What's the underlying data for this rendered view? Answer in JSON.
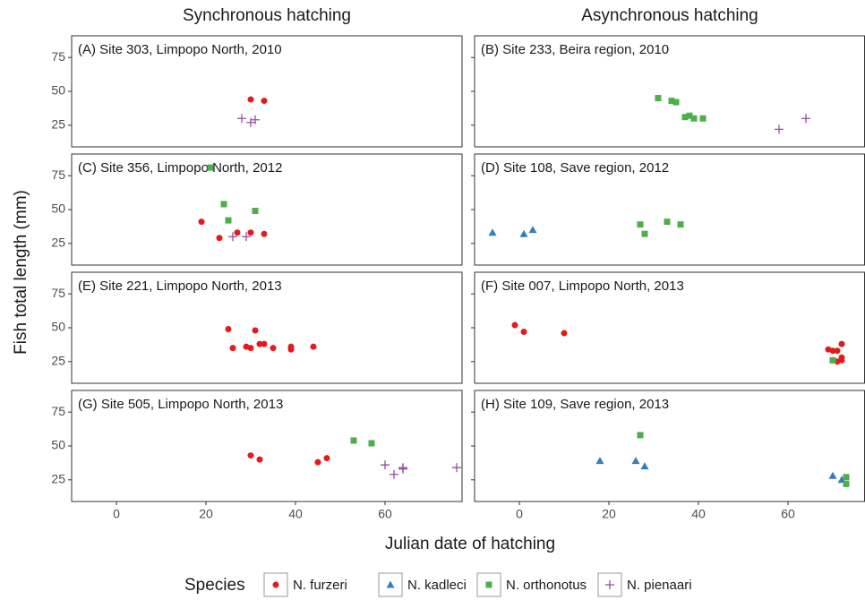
{
  "chart_data": {
    "type": "scatter",
    "column_titles": [
      "Synchronous hatching",
      "Asynchronous hatching"
    ],
    "x_label": "Julian date of hatching",
    "y_label": "Fish total length (mm)",
    "legend_title": "Species",
    "species": [
      {
        "name": "N. furzeri",
        "color": "#e41a1c",
        "marker": "circle"
      },
      {
        "name": "N. kadleci",
        "color": "#377eb8",
        "marker": "triangle"
      },
      {
        "name": "N. orthonotus",
        "color": "#4daf4a",
        "marker": "square"
      },
      {
        "name": "N. pienaari",
        "color": "#984ea3",
        "marker": "plus"
      }
    ],
    "xlim": [
      -10,
      77.2
    ],
    "xticks": [
      0,
      20,
      40,
      60
    ],
    "ylim": [
      9,
      91
    ],
    "yticks": [
      25,
      50,
      75
    ],
    "panels": [
      {
        "label": "(A) Site 303, Limpopo North, 2010",
        "series": [
          {
            "x": [
              30,
              33
            ],
            "values": [
              44,
              43
            ]
          },
          {
            "x": [],
            "values": []
          },
          {
            "x": [],
            "values": []
          },
          {
            "x": [
              28,
              30,
              31
            ],
            "values": [
              30,
              27,
              29
            ]
          }
        ]
      },
      {
        "label": "(B) Site 233, Beira region, 2010",
        "series": [
          {
            "x": [],
            "values": []
          },
          {
            "x": [],
            "values": []
          },
          {
            "x": [
              31,
              34,
              35,
              37,
              38,
              39,
              41
            ],
            "values": [
              45,
              43,
              42,
              31,
              32,
              30,
              30
            ]
          },
          {
            "x": [
              58,
              64
            ],
            "values": [
              22,
              30
            ]
          }
        ]
      },
      {
        "label": "(C) Site 356, Limpopo North, 2012",
        "series": [
          {
            "x": [
              19,
              23,
              27,
              30,
              33
            ],
            "values": [
              41,
              29,
              33,
              33,
              32
            ]
          },
          {
            "x": [],
            "values": []
          },
          {
            "x": [
              21,
              24,
              25,
              31
            ],
            "values": [
              81,
              54,
              42,
              49
            ]
          },
          {
            "x": [
              26,
              29
            ],
            "values": [
              30,
              30
            ]
          }
        ]
      },
      {
        "label": "(D) Site 108, Save region, 2012",
        "series": [
          {
            "x": [],
            "values": []
          },
          {
            "x": [
              -6,
              1,
              3
            ],
            "values": [
              33,
              32,
              35
            ]
          },
          {
            "x": [
              27,
              28,
              33,
              36
            ],
            "values": [
              39,
              32,
              41,
              39
            ]
          },
          {
            "x": [],
            "values": []
          }
        ]
      },
      {
        "label": "(E) Site 221, Limpopo North, 2013",
        "series": [
          {
            "x": [
              25,
              26,
              29,
              30,
              31,
              32,
              33,
              35,
              39,
              39,
              44
            ],
            "values": [
              49,
              35,
              36,
              35,
              48,
              38,
              38,
              35,
              36,
              34,
              36
            ]
          },
          {
            "x": [],
            "values": []
          },
          {
            "x": [],
            "values": []
          },
          {
            "x": [],
            "values": []
          }
        ]
      },
      {
        "label": "(F) Site 007, Limpopo North, 2013",
        "series": [
          {
            "x": [
              -1,
              1,
              10,
              69,
              70,
              71,
              72,
              72,
              71,
              72
            ],
            "values": [
              52,
              47,
              46,
              34,
              33,
              33,
              38,
              28,
              25,
              26
            ]
          },
          {
            "x": [],
            "values": []
          },
          {
            "x": [
              70
            ],
            "values": [
              26
            ]
          },
          {
            "x": [],
            "values": []
          }
        ]
      },
      {
        "label": "(G) Site 505, Limpopo North, 2013",
        "series": [
          {
            "x": [
              30,
              32,
              45,
              47
            ],
            "values": [
              43,
              40,
              38,
              41
            ]
          },
          {
            "x": [],
            "values": []
          },
          {
            "x": [
              53,
              57
            ],
            "values": [
              54,
              52
            ]
          },
          {
            "x": [
              60,
              62,
              64,
              64,
              76
            ],
            "values": [
              36,
              29,
              33,
              34,
              34
            ]
          }
        ]
      },
      {
        "label": "(H) Site 109, Save region, 2013",
        "series": [
          {
            "x": [],
            "values": []
          },
          {
            "x": [
              18,
              26,
              28,
              70,
              72
            ],
            "values": [
              39,
              39,
              35,
              28,
              25
            ]
          },
          {
            "x": [
              27,
              73,
              73
            ],
            "values": [
              58,
              27,
              22
            ]
          },
          {
            "x": [],
            "values": []
          }
        ]
      }
    ]
  }
}
